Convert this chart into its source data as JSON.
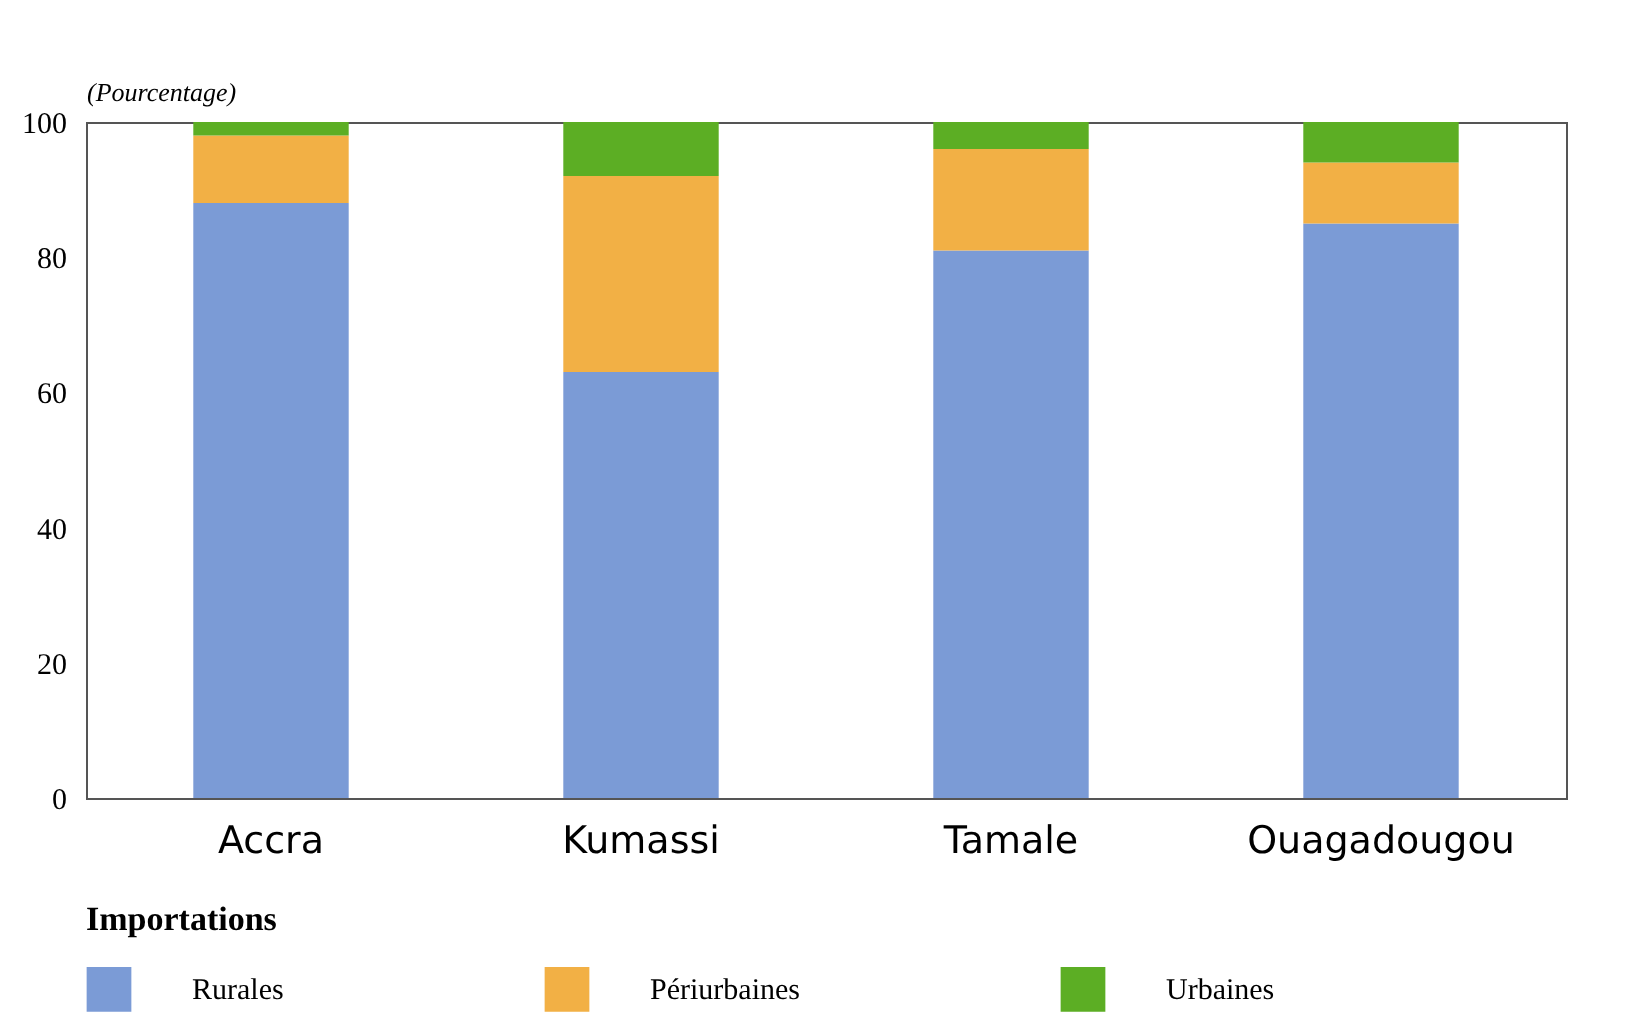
{
  "chart_data": {
    "type": "bar",
    "ylabel": "(Pourcentage)",
    "legend_title": "Importations",
    "categories": [
      "Accra",
      "Kumassi",
      "Tamale",
      "Ouagadougou"
    ],
    "series": [
      {
        "name": "Rurales",
        "color": "#7b9bd6",
        "values": [
          88,
          63,
          81,
          85
        ]
      },
      {
        "name": "Périurbaines",
        "color": "#f2b045",
        "values": [
          10,
          29,
          15,
          9
        ]
      },
      {
        "name": "Urbaines",
        "color": "#5cae24",
        "values": [
          2,
          8,
          4,
          6
        ]
      }
    ],
    "stacked": true,
    "ylim": [
      0,
      100
    ],
    "yticks": [
      0,
      20,
      40,
      60,
      80,
      100
    ],
    "grid": false,
    "legend": "bottom"
  }
}
